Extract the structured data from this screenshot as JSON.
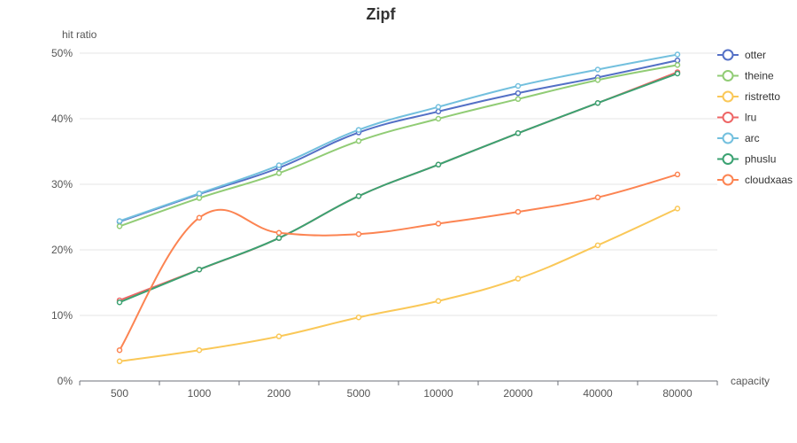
{
  "chart_data": {
    "type": "line",
    "title": "Zipf",
    "xlabel": "capacity",
    "ylabel": "hit ratio",
    "categories": [
      "500",
      "1000",
      "2000",
      "5000",
      "10000",
      "20000",
      "40000",
      "80000"
    ],
    "ylim": [
      0,
      50
    ],
    "yticks": [
      "0%",
      "10%",
      "20%",
      "30%",
      "40%",
      "50%"
    ],
    "grid": true,
    "legend_position": "right",
    "series": [
      {
        "name": "otter",
        "color": "#5470c6",
        "values": [
          24.3,
          28.5,
          32.5,
          37.9,
          41.1,
          43.9,
          46.3,
          48.9
        ]
      },
      {
        "name": "theine",
        "color": "#91cc75",
        "values": [
          23.6,
          27.9,
          31.7,
          36.6,
          40.0,
          43.0,
          45.9,
          48.2
        ]
      },
      {
        "name": "ristretto",
        "color": "#fac858",
        "values": [
          3.0,
          4.7,
          6.8,
          9.7,
          12.2,
          15.6,
          20.7,
          26.3
        ]
      },
      {
        "name": "lru",
        "color": "#ee6666",
        "values": [
          12.3,
          17.0,
          21.8,
          28.2,
          33.0,
          37.8,
          42.4,
          47.1
        ]
      },
      {
        "name": "arc",
        "color": "#73c0de",
        "values": [
          24.4,
          28.6,
          32.9,
          38.3,
          41.8,
          45.0,
          47.5,
          49.8
        ]
      },
      {
        "name": "phuslu",
        "color": "#3ba272",
        "values": [
          12.0,
          17.0,
          21.8,
          28.2,
          33.0,
          37.8,
          42.4,
          46.9
        ]
      },
      {
        "name": "cloudxaas",
        "color": "#fc8452",
        "values": [
          4.7,
          24.9,
          22.6,
          22.4,
          24.0,
          25.8,
          28.0,
          31.5
        ]
      }
    ]
  }
}
